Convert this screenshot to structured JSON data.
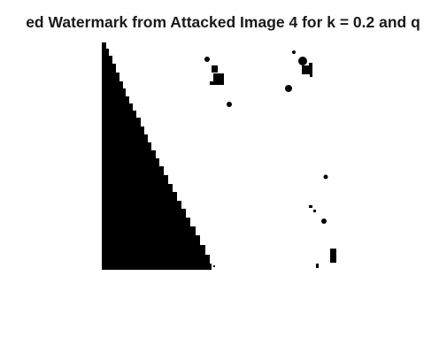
{
  "figure": {
    "title": "ed Watermark from Attacked Image 4 for k = 0.2 and q",
    "image_description_icon": "binary-watermark-image",
    "foreground_color": "#000000",
    "background_color": "#ffffff"
  }
}
